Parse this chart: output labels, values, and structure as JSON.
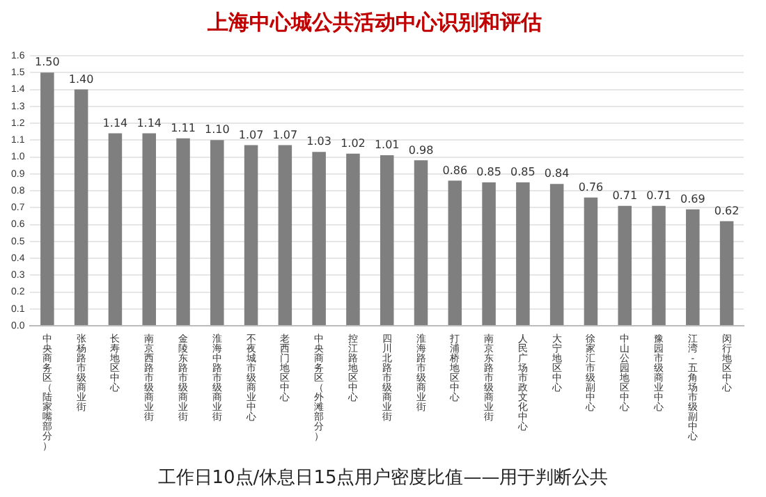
{
  "chart_data": {
    "type": "bar",
    "title": "上海中心城公共活动中心识别和评估",
    "categories": [
      "中央商务区（陆家嘴部分）",
      "张杨路市级商业街",
      "长寿地区中心",
      "南京西路市级商业街",
      "金陵东路市级商业街",
      "淮海中路市级商业街",
      "不夜城市级商业中心",
      "老西门地区中心",
      "中央商务区（外滩部分）",
      "控江路地区中心",
      "四川北路市级商业街",
      "淮海路市级商业街",
      "打浦桥地区中心",
      "南京东路市级商业街",
      "人民广场市政文化中心",
      "大宁地区中心",
      "徐家汇市级副中心",
      "中山公园地区中心",
      "豫园市级商业中心",
      "江湾-五角场市级副中心",
      "闵行地区中心"
    ],
    "values": [
      1.5,
      1.4,
      1.14,
      1.14,
      1.11,
      1.1,
      1.07,
      1.07,
      1.03,
      1.02,
      1.01,
      0.98,
      0.86,
      0.85,
      0.85,
      0.84,
      0.76,
      0.71,
      0.71,
      0.69,
      0.62
    ],
    "value_labels": [
      "1.50",
      "1.40",
      "1.14",
      "1.14",
      "1.11",
      "1.10",
      "1.07",
      "1.07",
      "1.03",
      "1.02",
      "1.01",
      "0.98",
      "0.86",
      "0.85",
      "0.85",
      "0.84",
      "0.76",
      "0.71",
      "0.71",
      "0.69",
      "0.62"
    ],
    "color": "#7f7f7f",
    "ylim": [
      0,
      1.6
    ],
    "yticks": [
      {
        "value": 0,
        "label": "0.0"
      },
      {
        "value": 0.1,
        "label": "0.1"
      },
      {
        "value": 0.2,
        "label": "0.2"
      },
      {
        "value": 0.3,
        "label": "0.3"
      },
      {
        "value": 0.4,
        "label": "0.4"
      },
      {
        "value": 0.5,
        "label": "0.5"
      },
      {
        "value": 0.6,
        "label": "0.6"
      },
      {
        "value": 0.7,
        "label": "0.7"
      },
      {
        "value": 0.8,
        "label": "0.8"
      },
      {
        "value": 0.9,
        "label": "0.9"
      },
      {
        "value": 1,
        "label": "1.0"
      },
      {
        "value": 1.1,
        "label": "1.1"
      },
      {
        "value": 1.2,
        "label": "1.2"
      },
      {
        "value": 1.3,
        "label": "1.3"
      },
      {
        "value": 1.4,
        "label": "1.4"
      },
      {
        "value": 1.5,
        "label": "1.5"
      },
      {
        "value": 1.6,
        "label": "1.6"
      }
    ],
    "grid": "y",
    "annotations": [
      "工作日10点/休息日15点用户密度比值——用于判断公共"
    ]
  }
}
